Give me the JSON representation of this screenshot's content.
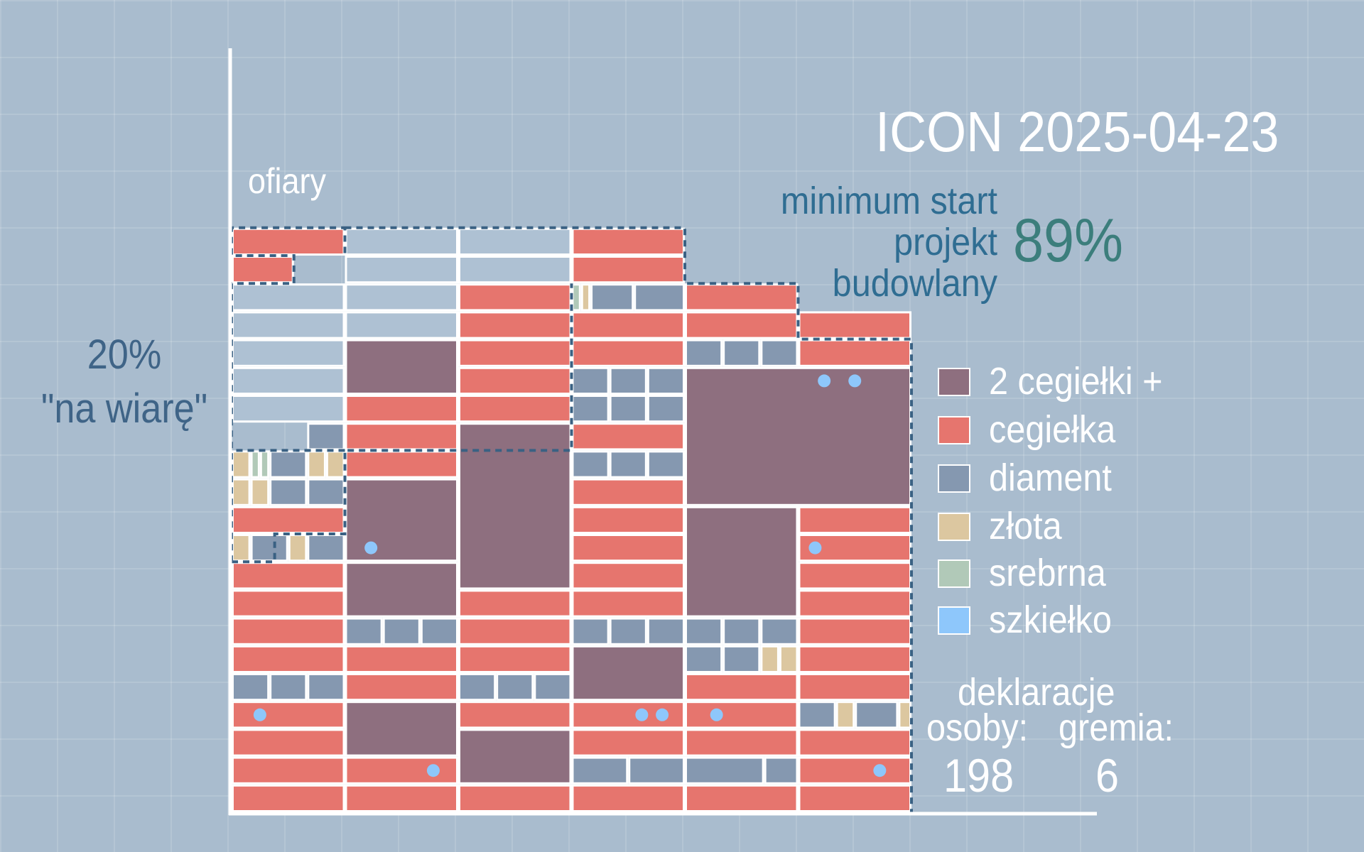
{
  "title": "ICON 2025-04-23",
  "y_axis_label": "ofiary",
  "faith": {
    "line1": "20%",
    "line2": "\"na wiarę\""
  },
  "minimum": {
    "line1": "minimum start",
    "line2": "projekt",
    "line3": "budowlany",
    "percent": "89%"
  },
  "declarations": {
    "title": "deklaracje",
    "persons_label": "osoby:",
    "groups_label": "gremia:",
    "persons": "198",
    "groups": "6"
  },
  "colors": {
    "background": "#a9bcce",
    "grid": "#ffffff",
    "two_bricks": "#8e6f7f",
    "brick": "#e6756e",
    "diamond": "#8598b0",
    "gold": "#dcc7a0",
    "silver": "#b1c9b8",
    "glass": "#8ec7fb",
    "dashed_outline": "#3a6183",
    "empty_cell": "#aec1d3"
  },
  "chart_data": {
    "type": "stacked-blocks",
    "legend": [
      {
        "key": "two_bricks",
        "label": "2 cegiełki +",
        "color": "#8e6f7f"
      },
      {
        "key": "brick",
        "label": "cegiełka",
        "color": "#e6756e"
      },
      {
        "key": "diamond",
        "label": "diament",
        "color": "#8598b0"
      },
      {
        "key": "gold",
        "label": "złota",
        "color": "#dcc7a0"
      },
      {
        "key": "silver",
        "label": "srebrna",
        "color": "#b1c9b8"
      },
      {
        "key": "glass",
        "label": "szkiełko",
        "color": "#8ec7fb"
      }
    ],
    "grid": {
      "columns": 6,
      "rows": 21,
      "column_units": 6
    },
    "columns": [
      [
        {
          "r": 0,
          "h": 1,
          "t": "brick"
        },
        {
          "r": 1,
          "h": 1,
          "t": "brick"
        },
        {
          "r": 2,
          "h": 1,
          "t": "brick"
        },
        {
          "r": 3,
          "h": 1,
          "t": "brick"
        },
        {
          "r": 4,
          "h": 1,
          "t": "diamond",
          "u": [
            0,
            2
          ]
        },
        {
          "r": 4,
          "h": 1,
          "t": "diamond",
          "u": [
            2,
            4
          ]
        },
        {
          "r": 4,
          "h": 1,
          "t": "diamond",
          "u": [
            4,
            6
          ]
        },
        {
          "r": 5,
          "h": 1,
          "t": "brick"
        },
        {
          "r": 6,
          "h": 1,
          "t": "brick"
        },
        {
          "r": 7,
          "h": 1,
          "t": "brick"
        },
        {
          "r": 8,
          "h": 1,
          "t": "brick"
        },
        {
          "r": 9,
          "h": 1,
          "t": "gold",
          "u": [
            0,
            1
          ]
        },
        {
          "r": 9,
          "h": 1,
          "t": "diamond",
          "u": [
            1,
            3
          ]
        },
        {
          "r": 9,
          "h": 1,
          "t": "gold",
          "u": [
            3,
            4
          ]
        },
        {
          "r": 9,
          "h": 1,
          "t": "diamond",
          "u": [
            4,
            6
          ]
        },
        {
          "r": 10,
          "h": 1,
          "t": "brick"
        },
        {
          "r": 11,
          "h": 1,
          "t": "gold",
          "u": [
            0,
            1
          ]
        },
        {
          "r": 11,
          "h": 1,
          "t": "gold",
          "u": [
            1,
            2
          ]
        },
        {
          "r": 11,
          "h": 1,
          "t": "diamond",
          "u": [
            2,
            4
          ]
        },
        {
          "r": 11,
          "h": 1,
          "t": "diamond",
          "u": [
            4,
            6
          ]
        },
        {
          "r": 12,
          "h": 1,
          "t": "gold",
          "u": [
            0,
            1
          ]
        },
        {
          "r": 12,
          "h": 1,
          "t": "silver",
          "u": [
            1,
            1.5
          ]
        },
        {
          "r": 12,
          "h": 1,
          "t": "silver",
          "u": [
            1.5,
            2
          ]
        },
        {
          "r": 12,
          "h": 1,
          "t": "diamond",
          "u": [
            2,
            4
          ]
        },
        {
          "r": 12,
          "h": 1,
          "t": "gold",
          "u": [
            4,
            5
          ]
        },
        {
          "r": 12,
          "h": 1,
          "t": "gold",
          "u": [
            5,
            6
          ]
        },
        {
          "r": 13,
          "h": 1,
          "t": "diamond",
          "u": [
            4,
            6
          ]
        },
        {
          "r": 14,
          "h": 1,
          "t": "empty"
        },
        {
          "r": 15,
          "h": 1,
          "t": "empty"
        },
        {
          "r": 16,
          "h": 1,
          "t": "empty"
        },
        {
          "r": 17,
          "h": 1,
          "t": "empty"
        },
        {
          "r": 18,
          "h": 1,
          "t": "empty"
        },
        {
          "r": 19,
          "h": 1,
          "t": "brick",
          "u": [
            0,
            3.3
          ]
        },
        {
          "r": 20,
          "h": 1,
          "t": "brick"
        }
      ],
      [
        {
          "r": 0,
          "h": 1,
          "t": "brick"
        },
        {
          "r": 1,
          "h": 1,
          "t": "brick"
        },
        {
          "r": 2,
          "h": 2,
          "t": "two_bricks"
        },
        {
          "r": 4,
          "h": 1,
          "t": "brick"
        },
        {
          "r": 5,
          "h": 1,
          "t": "brick"
        },
        {
          "r": 6,
          "h": 1,
          "t": "diamond",
          "u": [
            0,
            2
          ]
        },
        {
          "r": 6,
          "h": 1,
          "t": "diamond",
          "u": [
            2,
            4
          ]
        },
        {
          "r": 6,
          "h": 1,
          "t": "diamond",
          "u": [
            4,
            6
          ]
        },
        {
          "r": 7,
          "h": 2,
          "t": "two_bricks"
        },
        {
          "r": 9,
          "h": 3,
          "t": "two_bricks"
        },
        {
          "r": 12,
          "h": 1,
          "t": "brick"
        },
        {
          "r": 13,
          "h": 1,
          "t": "brick"
        },
        {
          "r": 14,
          "h": 1,
          "t": "brick"
        },
        {
          "r": 15,
          "h": 2,
          "t": "two_bricks"
        },
        {
          "r": 17,
          "h": 1,
          "t": "empty"
        },
        {
          "r": 18,
          "h": 1,
          "t": "empty"
        },
        {
          "r": 19,
          "h": 1,
          "t": "empty"
        },
        {
          "r": 20,
          "h": 1,
          "t": "empty"
        }
      ],
      [
        {
          "r": 0,
          "h": 1,
          "t": "brick"
        },
        {
          "r": 1,
          "h": 2,
          "t": "two_bricks"
        },
        {
          "r": 3,
          "h": 1,
          "t": "brick"
        },
        {
          "r": 4,
          "h": 1,
          "t": "diamond",
          "u": [
            0,
            2
          ]
        },
        {
          "r": 4,
          "h": 1,
          "t": "diamond",
          "u": [
            2,
            4
          ]
        },
        {
          "r": 4,
          "h": 1,
          "t": "diamond",
          "u": [
            4,
            6
          ]
        },
        {
          "r": 5,
          "h": 1,
          "t": "brick"
        },
        {
          "r": 6,
          "h": 1,
          "t": "brick"
        },
        {
          "r": 7,
          "h": 1,
          "t": "brick"
        },
        {
          "r": 8,
          "h": 6,
          "t": "two_bricks"
        },
        {
          "r": 14,
          "h": 1,
          "t": "brick"
        },
        {
          "r": 15,
          "h": 1,
          "t": "brick"
        },
        {
          "r": 16,
          "h": 1,
          "t": "brick"
        },
        {
          "r": 17,
          "h": 1,
          "t": "brick"
        },
        {
          "r": 18,
          "h": 1,
          "t": "brick"
        },
        {
          "r": 19,
          "h": 1,
          "t": "empty"
        },
        {
          "r": 20,
          "h": 1,
          "t": "empty"
        }
      ],
      [
        {
          "r": 0,
          "h": 1,
          "t": "brick"
        },
        {
          "r": 1,
          "h": 1,
          "t": "diamond",
          "u": [
            0,
            3
          ]
        },
        {
          "r": 1,
          "h": 1,
          "t": "diamond",
          "u": [
            3,
            6
          ]
        },
        {
          "r": 2,
          "h": 1,
          "t": "brick"
        },
        {
          "r": 3,
          "h": 1,
          "t": "brick"
        },
        {
          "r": 4,
          "h": 2,
          "t": "two_bricks"
        },
        {
          "r": 6,
          "h": 1,
          "t": "diamond",
          "u": [
            0,
            2
          ]
        },
        {
          "r": 6,
          "h": 1,
          "t": "diamond",
          "u": [
            2,
            4
          ]
        },
        {
          "r": 6,
          "h": 1,
          "t": "diamond",
          "u": [
            4,
            6
          ]
        },
        {
          "r": 7,
          "h": 1,
          "t": "brick"
        },
        {
          "r": 8,
          "h": 1,
          "t": "brick"
        },
        {
          "r": 9,
          "h": 1,
          "t": "brick"
        },
        {
          "r": 10,
          "h": 1,
          "t": "brick"
        },
        {
          "r": 11,
          "h": 1,
          "t": "brick"
        },
        {
          "r": 12,
          "h": 1,
          "t": "diamond",
          "u": [
            0,
            2
          ]
        },
        {
          "r": 12,
          "h": 1,
          "t": "diamond",
          "u": [
            2,
            4
          ]
        },
        {
          "r": 12,
          "h": 1,
          "t": "diamond",
          "u": [
            4,
            6
          ]
        },
        {
          "r": 13,
          "h": 1,
          "t": "brick"
        },
        {
          "r": 14,
          "h": 1,
          "t": "diamond",
          "u": [
            0,
            2
          ]
        },
        {
          "r": 14,
          "h": 1,
          "t": "diamond",
          "u": [
            2,
            4
          ]
        },
        {
          "r": 14,
          "h": 1,
          "t": "diamond",
          "u": [
            4,
            6
          ]
        },
        {
          "r": 15,
          "h": 1,
          "t": "diamond",
          "u": [
            0,
            2
          ]
        },
        {
          "r": 15,
          "h": 1,
          "t": "diamond",
          "u": [
            2,
            4
          ]
        },
        {
          "r": 15,
          "h": 1,
          "t": "diamond",
          "u": [
            4,
            6
          ]
        },
        {
          "r": 16,
          "h": 1,
          "t": "brick"
        },
        {
          "r": 17,
          "h": 1,
          "t": "brick"
        },
        {
          "r": 18,
          "h": 1,
          "t": "silver",
          "u": [
            0,
            0.5
          ]
        },
        {
          "r": 18,
          "h": 1,
          "t": "gold",
          "u": [
            0.5,
            1
          ]
        },
        {
          "r": 18,
          "h": 1,
          "t": "diamond",
          "u": [
            1,
            3.3
          ]
        },
        {
          "r": 18,
          "h": 1,
          "t": "diamond",
          "u": [
            3.3,
            6
          ]
        },
        {
          "r": 19,
          "h": 1,
          "t": "brick"
        },
        {
          "r": 20,
          "h": 1,
          "t": "brick"
        }
      ],
      [
        {
          "r": 0,
          "h": 1,
          "t": "brick"
        },
        {
          "r": 1,
          "h": 1,
          "t": "diamond",
          "u": [
            0,
            4.2
          ]
        },
        {
          "r": 1,
          "h": 1,
          "t": "diamond",
          "u": [
            4.2,
            6
          ]
        },
        {
          "r": 2,
          "h": 1,
          "t": "brick"
        },
        {
          "r": 3,
          "h": 1,
          "t": "brick"
        },
        {
          "r": 4,
          "h": 1,
          "t": "brick"
        },
        {
          "r": 5,
          "h": 1,
          "t": "diamond",
          "u": [
            0,
            2
          ]
        },
        {
          "r": 5,
          "h": 1,
          "t": "diamond",
          "u": [
            2,
            4
          ]
        },
        {
          "r": 5,
          "h": 1,
          "t": "gold",
          "u": [
            4,
            5
          ]
        },
        {
          "r": 5,
          "h": 1,
          "t": "gold",
          "u": [
            5,
            6
          ]
        },
        {
          "r": 6,
          "h": 1,
          "t": "diamond",
          "u": [
            0,
            2
          ]
        },
        {
          "r": 6,
          "h": 1,
          "t": "diamond",
          "u": [
            2,
            4
          ]
        },
        {
          "r": 6,
          "h": 1,
          "t": "diamond",
          "u": [
            4,
            6
          ]
        },
        {
          "r": 7,
          "h": 4,
          "t": "two_bricks"
        },
        {
          "r": 11,
          "h": 5,
          "t": "two_bricks",
          "u": [
            0,
            12
          ]
        },
        {
          "r": 16,
          "h": 1,
          "t": "diamond",
          "u": [
            0,
            2
          ]
        },
        {
          "r": 16,
          "h": 1,
          "t": "diamond",
          "u": [
            2,
            4
          ]
        },
        {
          "r": 16,
          "h": 1,
          "t": "diamond",
          "u": [
            4,
            6
          ]
        },
        {
          "r": 17,
          "h": 1,
          "t": "brick"
        },
        {
          "r": 18,
          "h": 1,
          "t": "brick"
        }
      ],
      [
        {
          "r": 0,
          "h": 1,
          "t": "brick"
        },
        {
          "r": 1,
          "h": 1,
          "t": "brick"
        },
        {
          "r": 2,
          "h": 1,
          "t": "brick"
        },
        {
          "r": 3,
          "h": 1,
          "t": "diamond",
          "u": [
            0,
            2
          ]
        },
        {
          "r": 3,
          "h": 1,
          "t": "gold",
          "u": [
            2,
            3
          ]
        },
        {
          "r": 3,
          "h": 1,
          "t": "diamond",
          "u": [
            3,
            5.3
          ]
        },
        {
          "r": 3,
          "h": 1,
          "t": "gold",
          "u": [
            5.3,
            6
          ]
        },
        {
          "r": 4,
          "h": 1,
          "t": "brick"
        },
        {
          "r": 5,
          "h": 1,
          "t": "brick"
        },
        {
          "r": 6,
          "h": 1,
          "t": "brick"
        },
        {
          "r": 7,
          "h": 1,
          "t": "brick"
        },
        {
          "r": 8,
          "h": 1,
          "t": "brick"
        },
        {
          "r": 9,
          "h": 1,
          "t": "brick"
        },
        {
          "r": 10,
          "h": 1,
          "t": "brick"
        },
        {
          "r": 16,
          "h": 1,
          "t": "brick"
        },
        {
          "r": 17,
          "h": 1,
          "t": "brick"
        }
      ]
    ],
    "glass_markers": [
      {
        "c": 0,
        "r": 3,
        "x": 0.25
      },
      {
        "c": 1,
        "r": 1,
        "x": 0.78
      },
      {
        "c": 1,
        "r": 9,
        "x": 0.23
      },
      {
        "c": 3,
        "r": 3,
        "x": 0.62
      },
      {
        "c": 3,
        "r": 3,
        "x": 0.8
      },
      {
        "c": 4,
        "r": 3,
        "x": 0.28
      },
      {
        "c": 5,
        "r": 1,
        "x": 0.72
      },
      {
        "c": 5,
        "r": 9,
        "x": 0.15
      },
      {
        "c": 5,
        "r": 15,
        "x": 0.23
      },
      {
        "c": 5,
        "r": 15,
        "x": 0.5
      }
    ]
  }
}
